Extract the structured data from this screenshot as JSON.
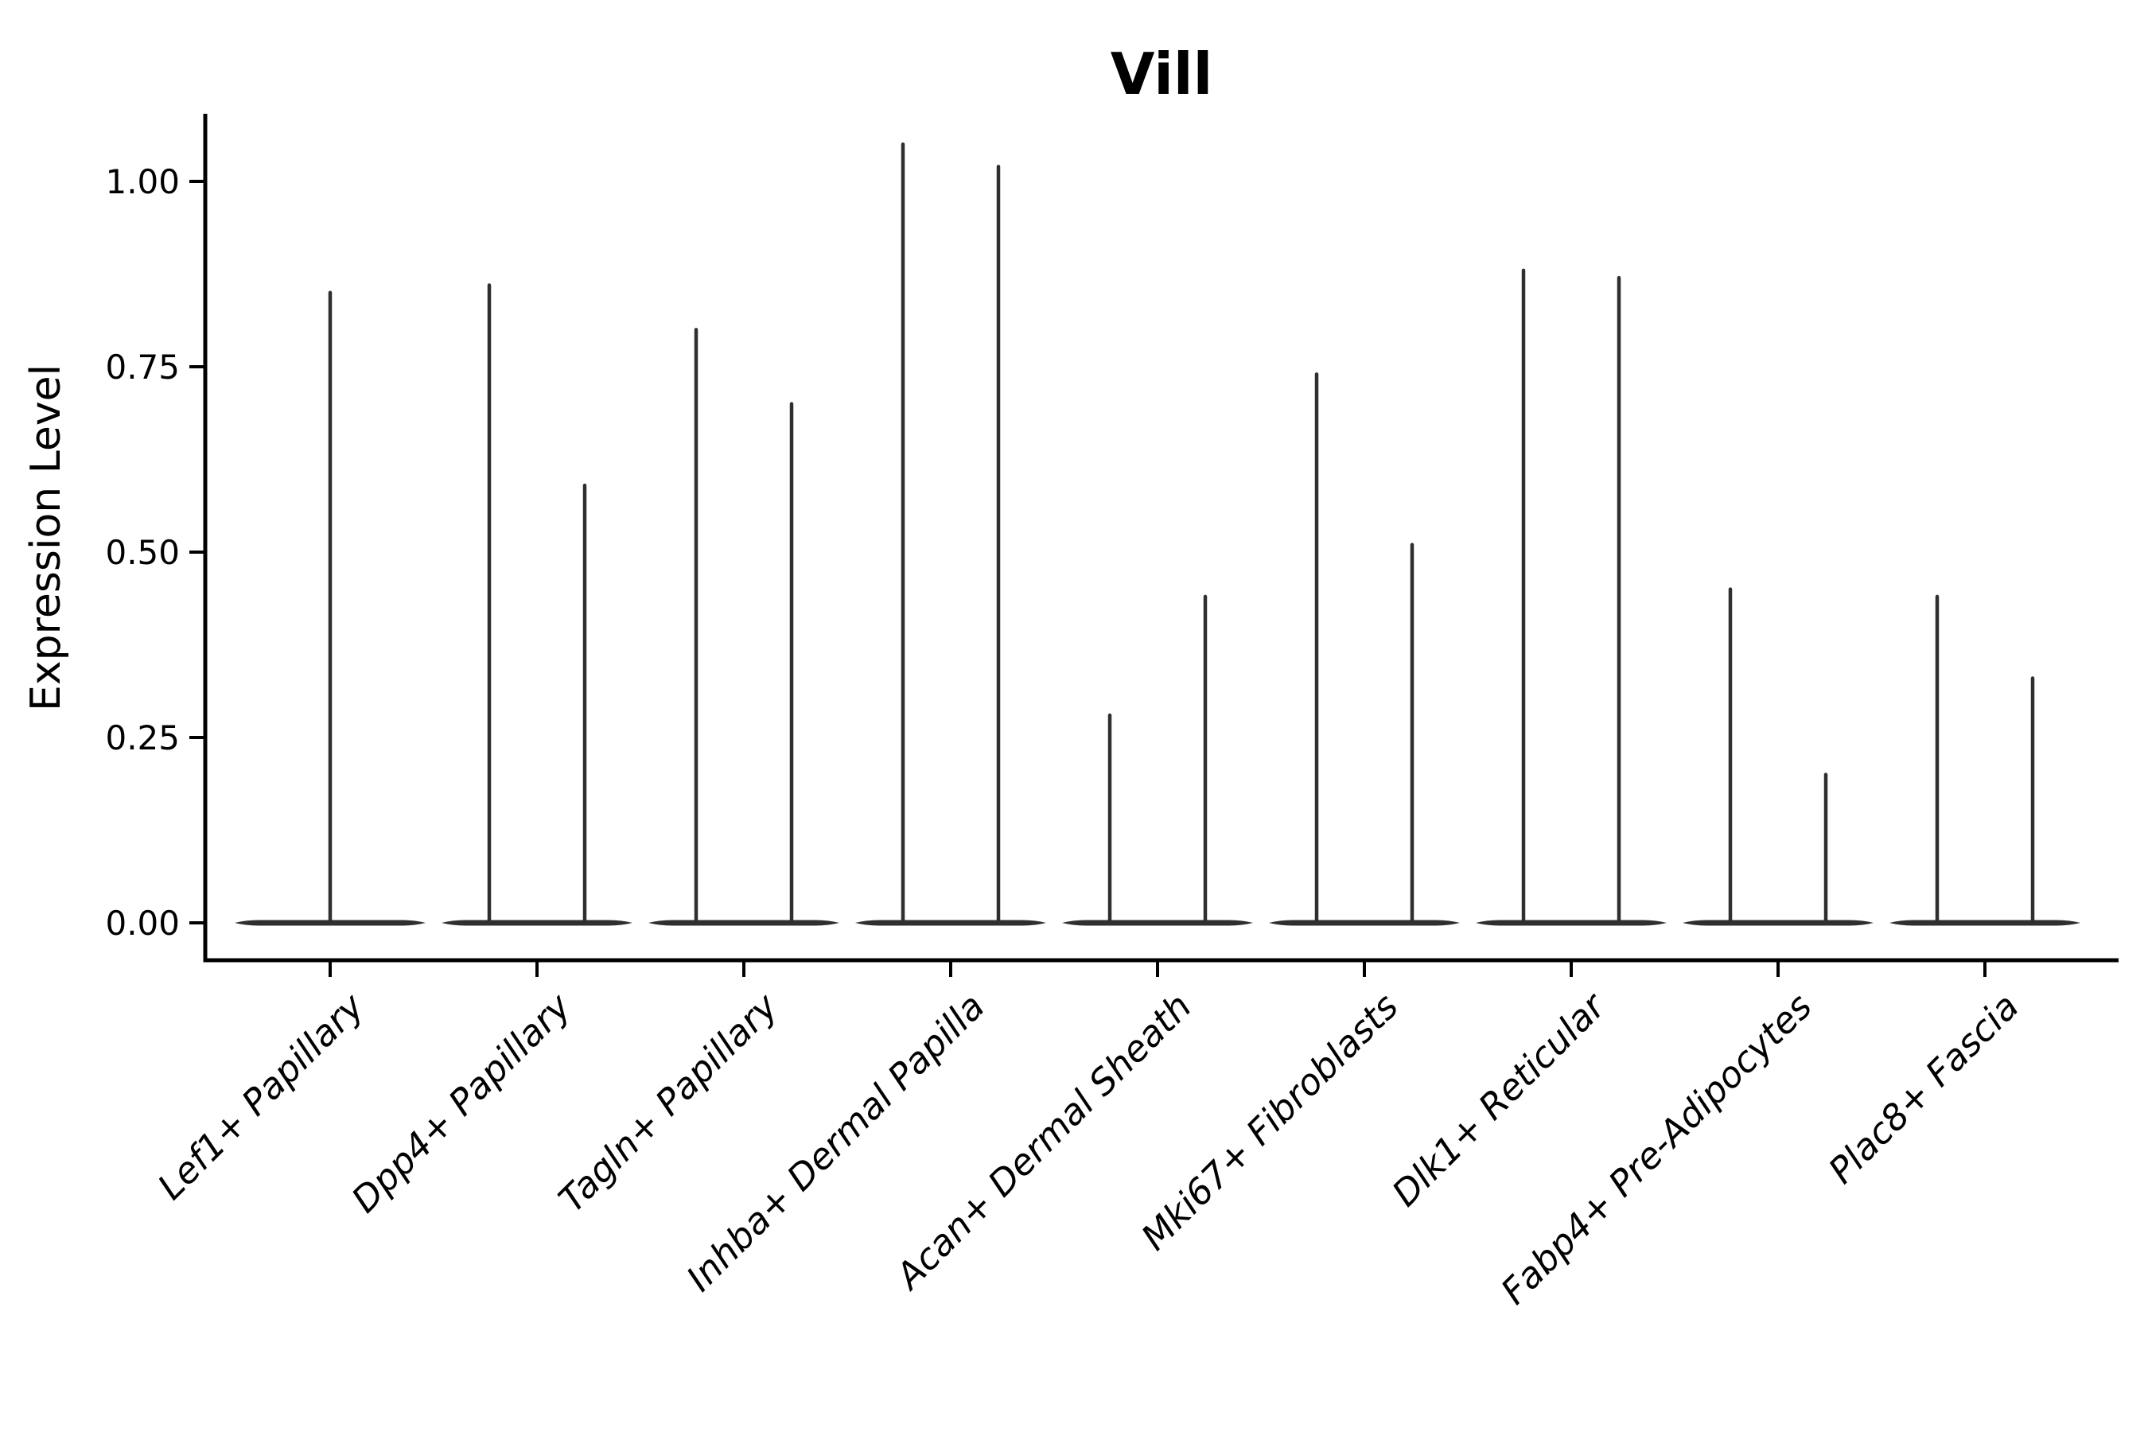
{
  "figure": {
    "background": "#ffffff"
  },
  "chart_data": {
    "type": "violin",
    "title": "Vill",
    "xlabel": "",
    "ylabel": "Expression Level",
    "categories": [
      "Lef1+ Papillary",
      "Dpp4+ Papillary",
      "Tagln+ Papillary",
      "Inhba+ Dermal Papilla",
      "Acan+ Dermal Sheath",
      "Mki67+ Fibroblasts",
      "Dlk1+ Reticular",
      "Fabp4+ Pre-Adipocytes",
      "Plac8+ Fascia"
    ],
    "series": [
      {
        "category": "Lef1+ Papillary",
        "base_value": 0,
        "spike_values": [
          0.85
        ]
      },
      {
        "category": "Dpp4+ Papillary",
        "base_value": 0,
        "spike_values": [
          0.86,
          0.59
        ]
      },
      {
        "category": "Tagln+ Papillary",
        "base_value": 0,
        "spike_values": [
          0.8,
          0.7
        ]
      },
      {
        "category": "Inhba+ Dermal Papilla",
        "base_value": 0,
        "spike_values": [
          1.05,
          1.02
        ]
      },
      {
        "category": "Acan+ Dermal Sheath",
        "base_value": 0,
        "spike_values": [
          0.28,
          0.44
        ]
      },
      {
        "category": "Mki67+ Fibroblasts",
        "base_value": 0,
        "spike_values": [
          0.74,
          0.51
        ]
      },
      {
        "category": "Dlk1+ Reticular",
        "base_value": 0,
        "spike_values": [
          0.88,
          0.87
        ]
      },
      {
        "category": "Fabp4+ Pre-Adipocytes",
        "base_value": 0,
        "spike_values": [
          0.45,
          0.2
        ]
      },
      {
        "category": "Plac8+ Fascia",
        "base_value": 0,
        "spike_values": [
          0.44,
          0.33
        ]
      }
    ],
    "ytick_labels": [
      "0.00",
      "0.25",
      "0.50",
      "0.75",
      "1.00"
    ],
    "ytick_values": [
      0,
      0.25,
      0.5,
      0.75,
      1.0
    ],
    "ylim": [
      -0.05,
      1.09
    ],
    "grid": false,
    "legend": false,
    "x_tick_label_rotation_deg": 45,
    "x_tick_label_style": "italic",
    "colors": {
      "violin": "#2f2f2f",
      "axis": "#000000",
      "text": "#000000",
      "background": "#ffffff"
    }
  }
}
